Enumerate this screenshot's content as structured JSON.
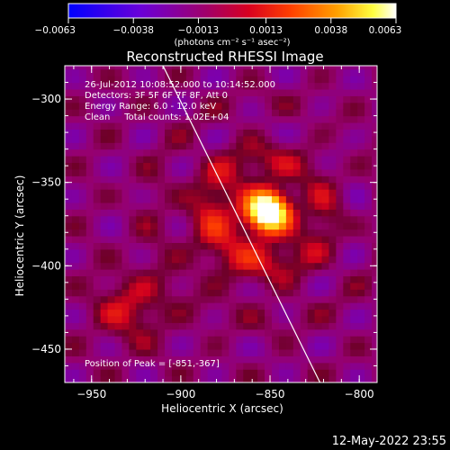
{
  "chart_data": {
    "type": "heatmap",
    "title": "Reconstructed RHESSI Image",
    "xlabel": "Heliocentric X (arcsec)",
    "ylabel": "Heliocentric Y (arcsec)",
    "xlim": [
      -965,
      -790
    ],
    "ylim": [
      -470,
      -280
    ],
    "x_ticks": [
      -950,
      -900,
      -850,
      -800
    ],
    "y_ticks": [
      -300,
      -350,
      -400,
      -450
    ],
    "x_tick_labels": [
      "−950",
      "−900",
      "−850",
      "−800"
    ],
    "y_tick_labels": [
      "−300",
      "−350",
      "−400",
      "−450"
    ],
    "grid": false,
    "colorbar": {
      "position": "top",
      "colormap": "blue-purple-red-yellow-white",
      "colors": [
        "#0000ff",
        "#7a00d0",
        "#c8003c",
        "#ff3c00",
        "#ffa000",
        "#ffff40",
        "#ffffff"
      ],
      "range": [
        -0.0063,
        0.0063
      ],
      "ticks": [
        -0.0063,
        -0.0038,
        -0.0013,
        0.0013,
        0.0038,
        0.0063
      ],
      "tick_labels": [
        "−0.0063",
        "−0.0038",
        "−0.0013",
        "0.0013",
        "0.0038",
        "0.0063"
      ],
      "unit_label": "(photons cm⁻² s⁻¹ asec⁻²)"
    },
    "annotations": {
      "line1": "26-Jul-2012 10:08:52.000 to 10:14:52.000",
      "line2": "Detectors: 3F 5F 6F 7F 8F, Att 0",
      "line3": "Energy Range: 6.0 - 12.0 keV",
      "line4": "Clean     Total counts: 1.02E+04",
      "peak": "Position of Peak = [-851,-367]"
    },
    "sources": [
      {
        "x": -851,
        "y": -367,
        "amplitude": 0.0063,
        "sigma_arcsec": 9
      },
      {
        "x": -860,
        "y": -372,
        "amplitude": 0.0025,
        "sigma_arcsec": 28
      },
      {
        "x": -928,
        "y": -425,
        "amplitude": 0.0022,
        "sigma_arcsec": 14
      }
    ],
    "limb_line": [
      [
        -910,
        -280
      ],
      [
        -822,
        -470
      ]
    ],
    "peak": [
      -851,
      -367
    ],
    "footer_date": "12-May-2022 23:55"
  }
}
